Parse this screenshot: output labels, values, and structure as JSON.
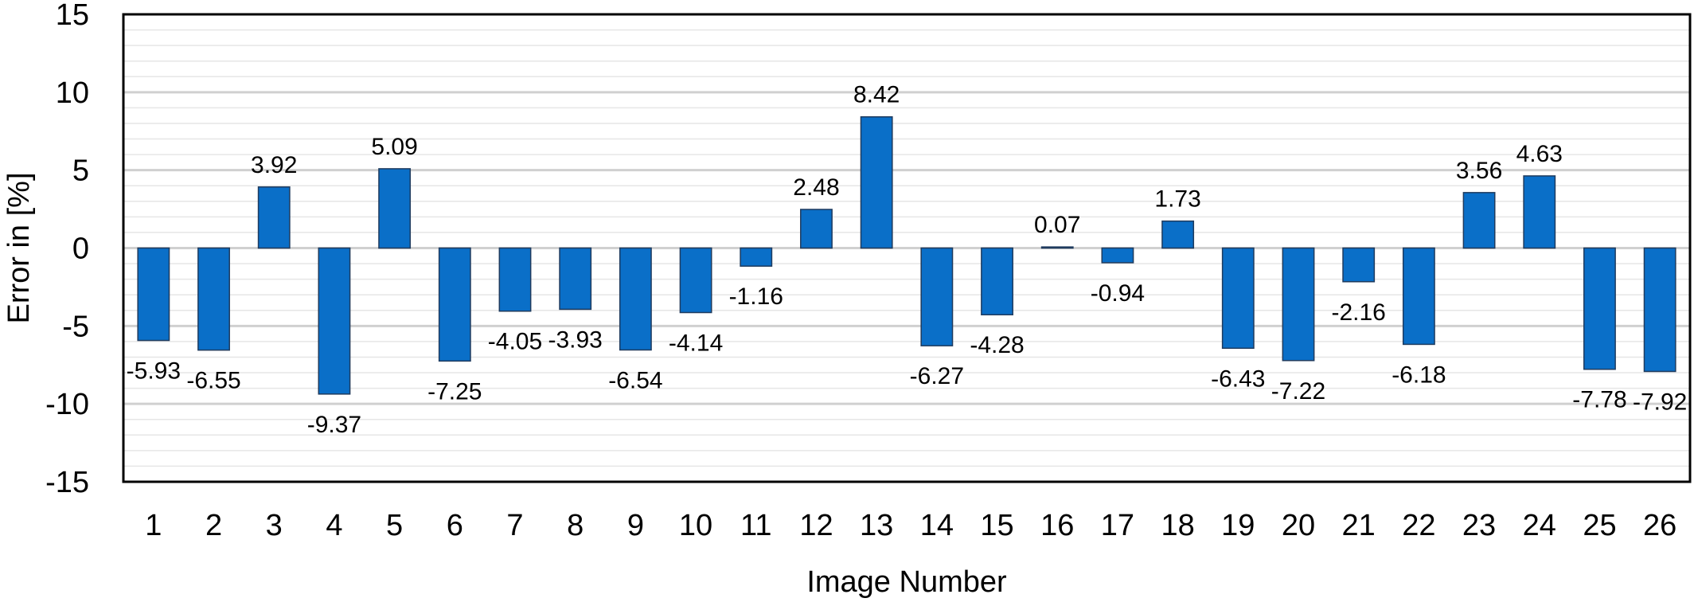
{
  "chart_data": {
    "type": "bar",
    "title": "",
    "xlabel": "Image Number",
    "ylabel": "Error in [%]",
    "ylim": [
      -15,
      15
    ],
    "yticks": [
      "-15",
      "-10",
      "-5",
      "0",
      "5",
      "10",
      "15"
    ],
    "grid": "horizontal",
    "legend": "none",
    "categories": [
      "1",
      "2",
      "3",
      "4",
      "5",
      "6",
      "7",
      "8",
      "9",
      "10",
      "11",
      "12",
      "13",
      "14",
      "15",
      "16",
      "17",
      "18",
      "19",
      "20",
      "21",
      "22",
      "23",
      "24",
      "25",
      "26"
    ],
    "values": [
      -5.93,
      -6.55,
      3.92,
      -9.37,
      5.09,
      -7.25,
      -4.05,
      -3.93,
      -6.54,
      -4.14,
      -1.16,
      2.48,
      8.42,
      -6.27,
      -4.28,
      0.07,
      -0.94,
      1.73,
      -6.43,
      -7.22,
      -2.16,
      -6.18,
      3.56,
      4.63,
      -7.78,
      -7.92
    ],
    "data_labels": [
      "-5.93",
      "-6.55",
      "3.92",
      "-9.37",
      "5.09",
      "-7.25",
      "-4.05",
      "-3.93",
      "-6.54",
      "-4.14",
      "-1.16",
      "2.48",
      "8.42",
      "-6.27",
      "-4.28",
      "0.07",
      "-0.94",
      "1.73",
      "-6.43",
      "-7.22",
      "-2.16",
      "-6.18",
      "3.56",
      "4.63",
      "-7.78",
      "-7.92"
    ],
    "colors": {
      "bar_fill": "#0a6fc8",
      "bar_stroke": "#1f3b5e",
      "major_grid": "#d0d0d0",
      "minor_grid": "#e6e6e6",
      "zero_line": "#d0d0d0",
      "frame": "#000000"
    }
  }
}
